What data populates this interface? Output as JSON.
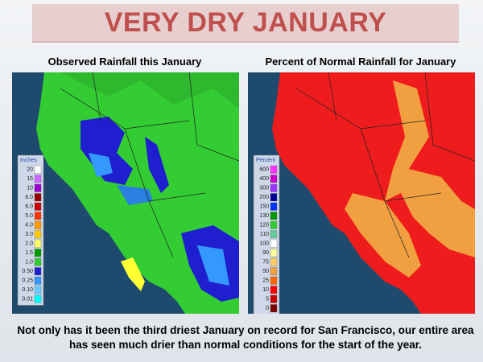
{
  "title": "VERY DRY JANUARY",
  "left_map": {
    "title": "Observed Rainfall this January",
    "legend_title": "Inches",
    "legend": [
      {
        "label": "20",
        "color": "#ffffff"
      },
      {
        "label": "15",
        "color": "#cc66ff"
      },
      {
        "label": "10",
        "color": "#9900cc"
      },
      {
        "label": "8.0",
        "color": "#990000"
      },
      {
        "label": "6.0",
        "color": "#cc0000"
      },
      {
        "label": "5.0",
        "color": "#ff3300"
      },
      {
        "label": "4.0",
        "color": "#ff9900"
      },
      {
        "label": "3.0",
        "color": "#ffcc00"
      },
      {
        "label": "2.0",
        "color": "#ffff66"
      },
      {
        "label": "1.5",
        "color": "#009900"
      },
      {
        "label": "1.0",
        "color": "#33cc33"
      },
      {
        "label": "0.50",
        "color": "#1f1fd0"
      },
      {
        "label": "0.25",
        "color": "#3399ff"
      },
      {
        "label": "0.10",
        "color": "#66ccff"
      },
      {
        "label": "0.01",
        "color": "#00ffff"
      }
    ]
  },
  "right_map": {
    "title": "Percent of Normal Rainfall for January",
    "legend_title": "Percent",
    "legend": [
      {
        "label": "600",
        "color": "#ff33ff"
      },
      {
        "label": "400",
        "color": "#cc00cc"
      },
      {
        "label": "300",
        "color": "#9933ff"
      },
      {
        "label": "200",
        "color": "#000099"
      },
      {
        "label": "150",
        "color": "#0033ff"
      },
      {
        "label": "130",
        "color": "#009900"
      },
      {
        "label": "120",
        "color": "#33cc33"
      },
      {
        "label": "110",
        "color": "#66cc99"
      },
      {
        "label": "100",
        "color": "#ffffff"
      },
      {
        "label": "90",
        "color": "#ffff99"
      },
      {
        "label": "75",
        "color": "#ffcc66"
      },
      {
        "label": "50",
        "color": "#f0a040"
      },
      {
        "label": "25",
        "color": "#ff6600"
      },
      {
        "label": "10",
        "color": "#ff0000"
      },
      {
        "label": "5",
        "color": "#cc0000"
      },
      {
        "label": "0",
        "color": "#800000"
      }
    ]
  },
  "caption": "Not only has it been the third driest January on record for San Francisco, our entire area has seen much drier than normal conditions for the start of the year."
}
